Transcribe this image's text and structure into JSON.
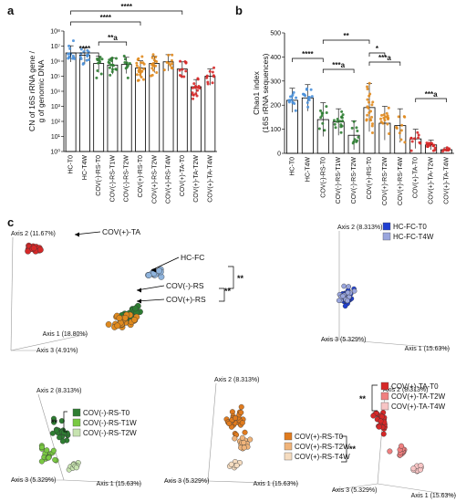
{
  "chart_data": [
    {
      "panel": "a",
      "type": "bar",
      "ylabel": "CN of 16S rRNA gene / g of genomic DNA",
      "log_scale": true,
      "ylim": [
        1,
        100000000
      ],
      "yticks": [
        "10⁰",
        "10¹",
        "10²",
        "10³",
        "10⁴",
        "10⁵",
        "10⁶",
        "10⁷",
        "10⁸"
      ],
      "categories": [
        "HC-T0",
        "HC-T4W",
        "COV(-)-RS-T0",
        "COV(-)-RS-T1W",
        "COV(-)-RS-T2W",
        "COV(+)-RS-T0",
        "COV(+)-RS-T2W",
        "COV(+)-RS-T4W",
        "COV(+)-TA-T0",
        "COV(+)-TA-T2W",
        "COV(+)-TA-T4W"
      ],
      "values": [
        3500000,
        2500000,
        700000,
        550000,
        600000,
        350000,
        700000,
        900000,
        300000,
        20000,
        100000
      ],
      "bar_colors": [
        "#4a90d9",
        "#4a90d9",
        "#2e7d32",
        "#2e7d32",
        "#2e7d32",
        "#e08a1e",
        "#e08a1e",
        "#e08a1e",
        "#d62828",
        "#d62828",
        "#d62828"
      ],
      "significance": [
        {
          "between": [
            "HC-T0",
            "COV(-)-RS-T0"
          ],
          "label": "****"
        },
        {
          "between": [
            "COV(-)-RS-T0",
            "COV(-)-RS-T2W"
          ],
          "label": "**a"
        },
        {
          "between": [
            "HC-T0",
            "COV(+)-RS-T0"
          ],
          "label": "****"
        },
        {
          "between": [
            "HC-T0",
            "COV(+)-TA-T0"
          ],
          "label": "****"
        }
      ]
    },
    {
      "panel": "b",
      "type": "bar",
      "ylabel": "Chao1 index (16S rRNA sequences)",
      "ylim": [
        0,
        500
      ],
      "yticks": [
        "0",
        "100",
        "200",
        "300",
        "400",
        "500"
      ],
      "categories": [
        "HC-T0",
        "HC-T4W",
        "COV(-)-RS-T0",
        "COV(-)-RS-T1W",
        "COV(-)-RS-T2W",
        "COV(+)-RS-T0",
        "COV(+)-RS-T2W",
        "COV(+)-RS-T4W",
        "COV(+)-TA-T0",
        "COV(+)-TA-T2W",
        "COV(+)-TA-T4W"
      ],
      "values": [
        220,
        230,
        140,
        130,
        75,
        190,
        125,
        115,
        60,
        35,
        15
      ],
      "errors": [
        50,
        55,
        70,
        55,
        60,
        100,
        70,
        70,
        40,
        20,
        8
      ],
      "bar_colors": [
        "#4a90d9",
        "#4a90d9",
        "#2e7d32",
        "#2e7d32",
        "#2e7d32",
        "#e08a1e",
        "#e08a1e",
        "#e08a1e",
        "#d62828",
        "#d62828",
        "#d62828"
      ],
      "significance": [
        {
          "between": [
            "HC-T0",
            "COV(-)-RS-T0"
          ],
          "label": "****"
        },
        {
          "between": [
            "COV(-)-RS-T0",
            "COV(-)-RS-T2W"
          ],
          "label": "***a"
        },
        {
          "between": [
            "COV(-)-RS-T0",
            "COV(+)-RS-T0"
          ],
          "label": "**"
        },
        {
          "between": [
            "COV(+)-RS-T0",
            "COV(+)-RS-T2W"
          ],
          "label": "*"
        },
        {
          "between": [
            "COV(+)-RS-T0",
            "COV(+)-RS-T4W"
          ],
          "label": "***a"
        },
        {
          "between": [
            "COV(+)-TA-T0",
            "COV(+)-TA-T4W"
          ],
          "label": "***a"
        }
      ]
    },
    {
      "panel": "c1",
      "type": "scatter",
      "axes": [
        "Axis 1 (18.80%)",
        "Axis 2 (11.67%)",
        "Axis 3 (4.91%)"
      ],
      "groups": [
        {
          "label": "COV(+)-TA",
          "color": "#d62828",
          "n": 20
        },
        {
          "label": "HC-FC",
          "color": "#8fb4dd",
          "n": 20
        },
        {
          "label": "COV(-)-RS",
          "color": "#2e7d32",
          "n": 22
        },
        {
          "label": "COV(+)-RS",
          "color": "#e08a1e",
          "n": 24
        }
      ],
      "significance": [
        "**",
        "**"
      ]
    },
    {
      "panel": "c2",
      "type": "scatter",
      "axes": [
        "Axis 1 (15.63%)",
        "Axis 2 (8.313%)",
        "Axis 3 (5.329%)"
      ],
      "legend": [
        {
          "label": "HC-FC-T0",
          "color": "#1f3fd1"
        },
        {
          "label": "HC-FC-T4W",
          "color": "#9aa6dd"
        }
      ]
    },
    {
      "panel": "c3",
      "type": "scatter",
      "axes": [
        "Axis 1 (15.63%)",
        "Axis 2 (8.313%)",
        "Axis 3 (5.329%)"
      ],
      "legend": [
        {
          "label": "COV(-)-RS-T0",
          "color": "#2e7d32"
        },
        {
          "label": "COV(-)-RS-T1W",
          "color": "#7ac943"
        },
        {
          "label": "COV(-)-RS-T2W",
          "color": "#c7e3b0"
        }
      ],
      "significance": "**"
    },
    {
      "panel": "c4",
      "type": "scatter",
      "axes": [
        "Axis 1 (15.63%)",
        "Axis 2 (8.313%)",
        "Axis 3 (5.329%)"
      ],
      "legend": [
        {
          "label": "COV(+)-RS-T0",
          "color": "#e07b1e"
        },
        {
          "label": "COV(+)-RS-T2W",
          "color": "#f0b47a"
        },
        {
          "label": "COV(+)-RS-T4W",
          "color": "#f5dcc0"
        }
      ],
      "significance": "**"
    },
    {
      "panel": "c5",
      "type": "scatter",
      "axes": [
        "Axis 1 (15.63%)",
        "Axis 2 (8.313%)",
        "Axis 3 (5.329%)"
      ],
      "legend": [
        {
          "label": "COV(+)-TA-T0",
          "color": "#d62828"
        },
        {
          "label": "COV(+)-TA-T2W",
          "color": "#f08080"
        },
        {
          "label": "COV(+)-TA-T4W",
          "color": "#f7c5c5"
        }
      ],
      "significance": "**"
    }
  ]
}
